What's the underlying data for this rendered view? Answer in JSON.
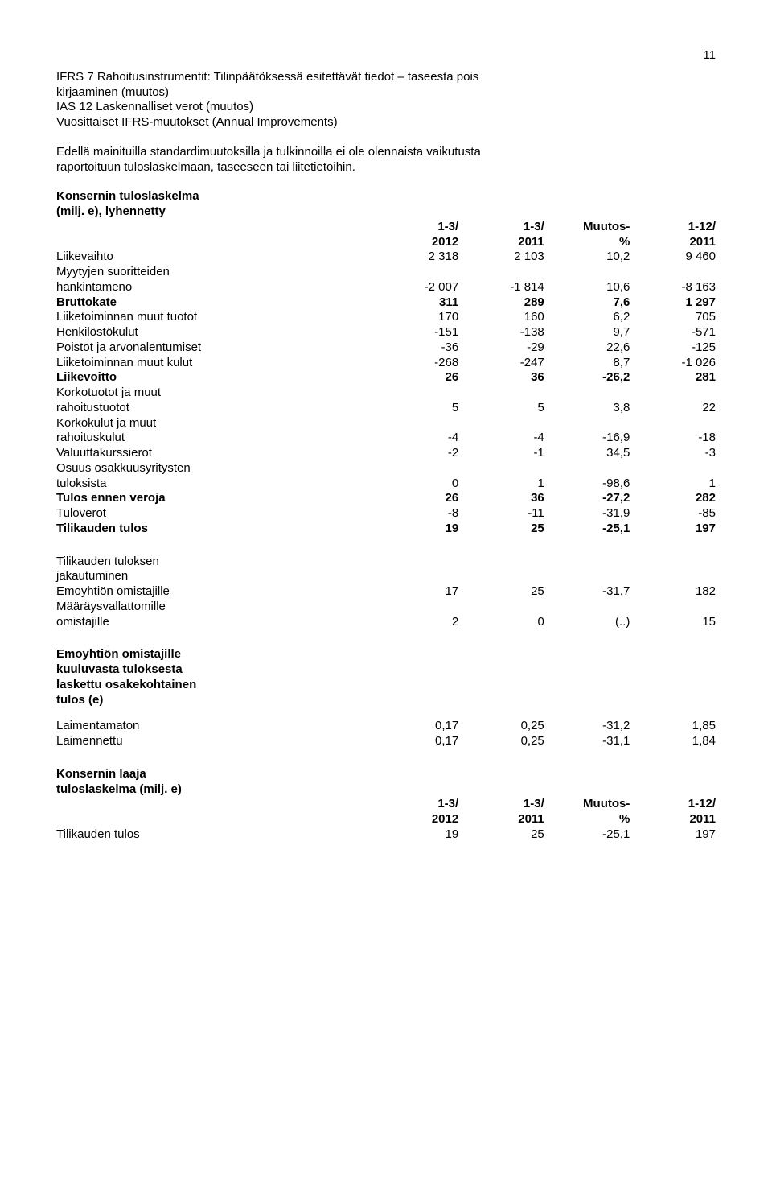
{
  "page_number": "11",
  "intro_lines": [
    "IFRS 7 Rahoitusinstrumentit: Tilinpäätöksessä esitettävät tiedot – taseesta pois",
    "kirjaaminen (muutos)",
    "IAS 12 Laskennalliset verot (muutos)",
    "Vuosittaiset IFRS-muutokset (Annual Improvements)"
  ],
  "para2_lines": [
    "Edellä mainituilla standardimuutoksilla ja tulkinnoilla ei ole olennaista vaikutusta",
    "raportoituun tuloslaskelmaan, taseeseen tai liitetietoihin."
  ],
  "table1": {
    "title_lines": [
      "Konsernin tuloslaskelma",
      "(milj. e), lyhennetty"
    ],
    "header_top": [
      "",
      "1-3/",
      "1-3/",
      "Muutos-",
      "1-12/"
    ],
    "header_bot": [
      "",
      "2012",
      "2011",
      "%",
      "2011"
    ],
    "rows": [
      {
        "label": "Liikevaihto",
        "v": [
          "2 318",
          "2 103",
          "10,2",
          "9 460"
        ],
        "bold": false
      },
      {
        "label_lines": [
          "Myytyjen suoritteiden",
          "hankintameno"
        ],
        "v": [
          "-2 007",
          "-1 814",
          "10,6",
          "-8 163"
        ],
        "bold": false
      },
      {
        "label": "Bruttokate",
        "v": [
          "311",
          "289",
          "7,6",
          "1 297"
        ],
        "bold": true
      },
      {
        "label": "Liiketoiminnan muut tuotot",
        "v": [
          "170",
          "160",
          "6,2",
          "705"
        ],
        "bold": false
      },
      {
        "label": "Henkilöstökulut",
        "v": [
          "-151",
          "-138",
          "9,7",
          "-571"
        ],
        "bold": false
      },
      {
        "label": "Poistot ja arvonalentumiset",
        "v": [
          "-36",
          "-29",
          "22,6",
          "-125"
        ],
        "bold": false
      },
      {
        "label": "Liiketoiminnan muut kulut",
        "v": [
          "-268",
          "-247",
          "8,7",
          "-1 026"
        ],
        "bold": false
      },
      {
        "label": "Liikevoitto",
        "v": [
          "26",
          "36",
          "-26,2",
          "281"
        ],
        "bold": true
      },
      {
        "label_lines": [
          "Korkotuotot ja muut",
          "rahoitustuotot"
        ],
        "v": [
          "5",
          "5",
          "3,8",
          "22"
        ],
        "bold": false
      },
      {
        "label_lines": [
          "Korkokulut ja muut",
          "rahoituskulut"
        ],
        "v": [
          "-4",
          "-4",
          "-16,9",
          "-18"
        ],
        "bold": false
      },
      {
        "label": "Valuuttakurssierot",
        "v": [
          "-2",
          "-1",
          "34,5",
          "-3"
        ],
        "bold": false
      },
      {
        "label_lines": [
          "Osuus osakkuusyritysten",
          "tuloksista"
        ],
        "v": [
          "0",
          "1",
          "-98,6",
          "1"
        ],
        "bold": false
      },
      {
        "label": "Tulos ennen veroja",
        "v": [
          "26",
          "36",
          "-27,2",
          "282"
        ],
        "bold": true
      },
      {
        "label": "Tuloverot",
        "v": [
          "-8",
          "-11",
          "-31,9",
          "-85"
        ],
        "bold": false
      },
      {
        "label": "Tilikauden tulos",
        "v": [
          "19",
          "25",
          "-25,1",
          "197"
        ],
        "bold": true
      }
    ]
  },
  "table2": {
    "intro_lines": [
      "Tilikauden tuloksen",
      "jakautuminen"
    ],
    "rows": [
      {
        "label": "Emoyhtiön omistajille",
        "v": [
          "17",
          "25",
          "-31,7",
          "182"
        ],
        "bold": false
      },
      {
        "label_lines": [
          "Määräysvallattomille",
          "omistajille"
        ],
        "v": [
          "2",
          "0",
          "(..)",
          "15"
        ],
        "bold": false
      }
    ]
  },
  "eps_title_lines": [
    "Emoyhtiön omistajille",
    "kuuluvasta tuloksesta",
    "laskettu osakekohtainen",
    "tulos (e)"
  ],
  "table3": {
    "rows": [
      {
        "label": "Laimentamaton",
        "v": [
          "0,17",
          "0,25",
          "-31,2",
          "1,85"
        ],
        "bold": false
      },
      {
        "label": "Laimennettu",
        "v": [
          "0,17",
          "0,25",
          "-31,1",
          "1,84"
        ],
        "bold": false
      }
    ]
  },
  "table4": {
    "title_lines": [
      "Konsernin laaja",
      "tuloslaskelma (milj. e)"
    ],
    "header_top": [
      "",
      "1-3/",
      "1-3/",
      "Muutos-",
      "1-12/"
    ],
    "header_bot": [
      "",
      "2012",
      "2011",
      "%",
      "2011"
    ],
    "rows": [
      {
        "label": "Tilikauden tulos",
        "v": [
          "19",
          "25",
          "-25,1",
          "197"
        ],
        "bold": false
      }
    ]
  }
}
